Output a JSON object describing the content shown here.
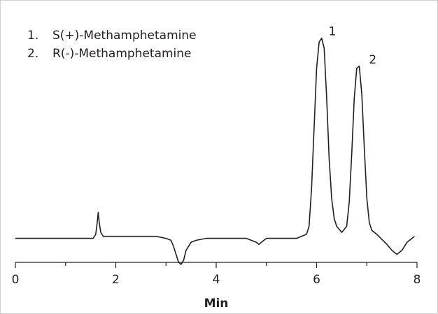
{
  "chart_data": {
    "type": "line",
    "title": "",
    "xlabel": "Min",
    "ylabel": "",
    "xlim": [
      0,
      8
    ],
    "ylim": [
      -0.12,
      1.1
    ],
    "x_ticks": [
      0,
      2,
      4,
      6,
      8
    ],
    "x_minor_ticks": [
      1,
      3,
      5,
      7
    ],
    "grid": false,
    "legend_position": "top-left",
    "legend": [
      {
        "number": "1.",
        "label": "S(+)-Methamphetamine"
      },
      {
        "number": "2.",
        "label": "R(-)-Methamphetamine"
      }
    ],
    "peak_labels": [
      {
        "text": "1",
        "x": 6.1,
        "y": 1.0
      },
      {
        "text": "2",
        "x": 6.82,
        "y": 0.86
      }
    ],
    "series": [
      {
        "color": "#231f20",
        "x": [
          0,
          0.2,
          0.4,
          0.6,
          0.8,
          1.0,
          1.2,
          1.4,
          1.55,
          1.6,
          1.63,
          1.65,
          1.67,
          1.7,
          1.75,
          1.85,
          2.0,
          2.2,
          2.4,
          2.6,
          2.8,
          3.0,
          3.1,
          3.15,
          3.2,
          3.25,
          3.3,
          3.35,
          3.4,
          3.5,
          3.6,
          3.8,
          4.0,
          4.2,
          4.4,
          4.6,
          4.8,
          4.85,
          4.9,
          4.95,
          5.0,
          5.2,
          5.4,
          5.6,
          5.8,
          5.85,
          5.9,
          5.95,
          6.0,
          6.05,
          6.1,
          6.15,
          6.2,
          6.25,
          6.3,
          6.35,
          6.4,
          6.5,
          6.6,
          6.65,
          6.7,
          6.75,
          6.8,
          6.85,
          6.9,
          6.95,
          7.0,
          7.05,
          7.1,
          7.2,
          7.4,
          7.5,
          7.6,
          7.7,
          7.8,
          7.9,
          7.95
        ],
        "values": [
          0.0,
          0.0,
          0.0,
          0.0,
          0.0,
          0.0,
          0.0,
          0.0,
          0.0,
          0.02,
          0.08,
          0.13,
          0.08,
          0.03,
          0.01,
          0.01,
          0.01,
          0.01,
          0.01,
          0.01,
          0.01,
          0.0,
          -0.01,
          -0.04,
          -0.08,
          -0.12,
          -0.13,
          -0.11,
          -0.06,
          -0.02,
          -0.01,
          0.0,
          0.0,
          0.0,
          0.0,
          0.0,
          -0.02,
          -0.03,
          -0.02,
          -0.01,
          0.0,
          0.0,
          0.0,
          0.0,
          0.02,
          0.06,
          0.25,
          0.55,
          0.85,
          0.98,
          1.0,
          0.95,
          0.7,
          0.4,
          0.2,
          0.1,
          0.06,
          0.03,
          0.06,
          0.18,
          0.42,
          0.7,
          0.85,
          0.86,
          0.72,
          0.45,
          0.2,
          0.08,
          0.04,
          0.02,
          -0.03,
          -0.06,
          -0.08,
          -0.06,
          -0.02,
          0.0,
          0.01
        ]
      }
    ]
  }
}
